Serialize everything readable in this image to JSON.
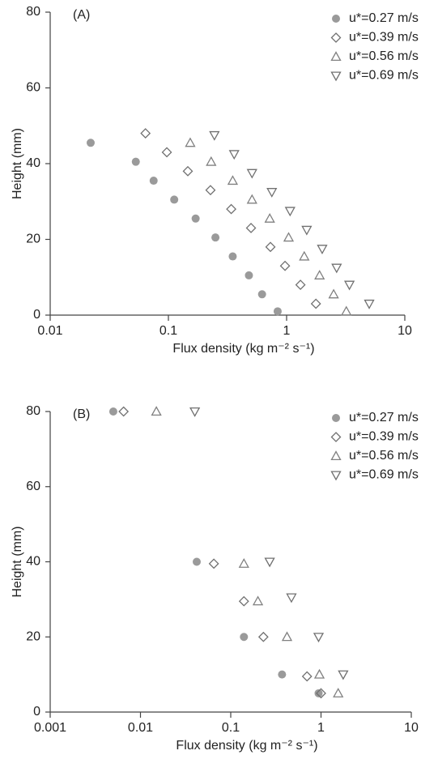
{
  "chart_data": [
    {
      "type": "scatter",
      "title": "(A)",
      "xlabel": "Flux density  (kg m⁻² s⁻¹)",
      "ylabel": "Height  (mm)",
      "xscale": "log",
      "xlim": [
        0.01,
        10
      ],
      "xticks": [
        0.01,
        0.1,
        1,
        10
      ],
      "ylim": [
        0,
        80
      ],
      "yticks": [
        0,
        20,
        40,
        60,
        80
      ],
      "legend": "upper right",
      "series": [
        {
          "name": "u*=0.27 m/s",
          "marker": "circle",
          "color": "#9a9a9a",
          "x": [
            0.022,
            0.053,
            0.075,
            0.112,
            0.17,
            0.25,
            0.35,
            0.48,
            0.62,
            0.84
          ],
          "values": [
            45.5,
            40.5,
            35.5,
            30.5,
            25.5,
            20.5,
            15.5,
            10.5,
            5.5,
            1
          ]
        },
        {
          "name": "u*=0.39 m/s",
          "marker": "diamond",
          "color": "#707070",
          "x": [
            0.064,
            0.097,
            0.146,
            0.227,
            0.34,
            0.5,
            0.73,
            0.97,
            1.31,
            1.77
          ],
          "values": [
            48,
            43,
            38,
            33,
            28,
            23,
            18,
            13,
            8,
            3
          ]
        },
        {
          "name": "u*=0.56 m/s",
          "marker": "triangle-up",
          "color": "#808080",
          "x": [
            0.153,
            0.23,
            0.35,
            0.51,
            0.72,
            1.04,
            1.41,
            1.9,
            2.5,
            3.2
          ],
          "values": [
            45.5,
            40.5,
            35.5,
            30.5,
            25.5,
            20.5,
            15.5,
            10.5,
            5.5,
            1
          ]
        },
        {
          "name": "u*=0.69 m/s",
          "marker": "triangle-down",
          "color": "#707070",
          "x": [
            0.245,
            0.36,
            0.51,
            0.75,
            1.07,
            1.48,
            2.0,
            2.65,
            3.4,
            5.0
          ],
          "values": [
            47.5,
            42.5,
            37.5,
            32.5,
            27.5,
            22.5,
            17.5,
            12.5,
            8,
            3
          ]
        }
      ]
    },
    {
      "type": "scatter",
      "title": "(B)",
      "xlabel": "Flux density  (kg m⁻² s⁻¹)",
      "ylabel": "Height  (mm)",
      "xscale": "log",
      "xlim": [
        0.001,
        10
      ],
      "xticks": [
        0.001,
        0.01,
        0.1,
        1,
        10
      ],
      "ylim": [
        0,
        80
      ],
      "yticks": [
        0,
        20,
        40,
        60,
        80
      ],
      "legend": "upper right",
      "series": [
        {
          "name": "u*=0.27 m/s",
          "marker": "circle",
          "color": "#9a9a9a",
          "x": [
            0.005,
            0.042,
            0.14,
            0.37,
            0.94
          ],
          "values": [
            80,
            40,
            20,
            10,
            5
          ]
        },
        {
          "name": "u*=0.39 m/s",
          "marker": "diamond",
          "color": "#707070",
          "x": [
            0.0065,
            0.065,
            0.14,
            0.23,
            0.7,
            1.0
          ],
          "values": [
            80,
            39.5,
            29.5,
            20,
            9.5,
            5
          ]
        },
        {
          "name": "u*=0.56 m/s",
          "marker": "triangle-up",
          "color": "#808080",
          "x": [
            0.015,
            0.14,
            0.2,
            0.42,
            0.96,
            1.55
          ],
          "values": [
            80,
            39.5,
            29.5,
            20,
            10,
            5
          ]
        },
        {
          "name": "u*=0.69 m/s",
          "marker": "triangle-down",
          "color": "#707070",
          "x": [
            0.04,
            0.27,
            0.47,
            0.94,
            1.76
          ],
          "values": [
            80,
            40,
            30.5,
            20,
            10
          ]
        }
      ]
    }
  ]
}
